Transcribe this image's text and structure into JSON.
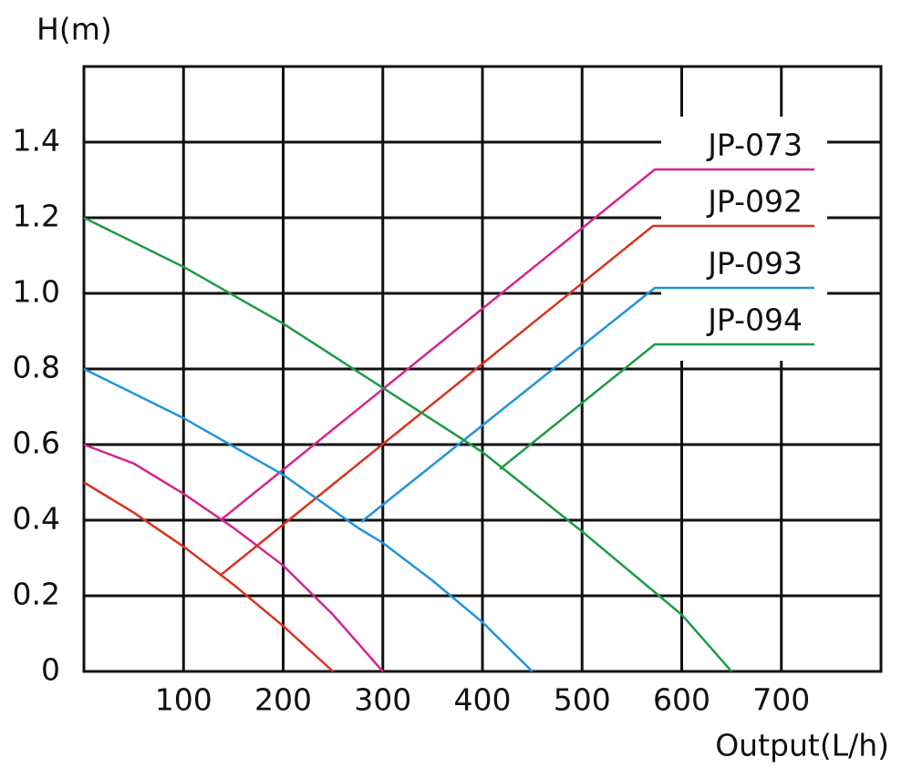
{
  "chart_data": {
    "type": "line",
    "y_label": "H(m)",
    "x_label": "Output(L/h)",
    "xlim": [
      0,
      800
    ],
    "ylim": [
      0,
      1.6
    ],
    "xticks": [
      100,
      200,
      300,
      400,
      500,
      600,
      700
    ],
    "yticks": [
      0,
      0.2,
      0.4,
      0.6,
      0.8,
      {
        "value": 1,
        "label": "1.0"
      },
      1.2,
      1.4
    ],
    "grid": true,
    "series": [
      {
        "name": "JP-073",
        "color": "#d6248f",
        "x": [
          0,
          50,
          100,
          150,
          200,
          250,
          300
        ],
        "values": [
          0.6,
          0.55,
          0.47,
          0.38,
          0.28,
          0.15,
          0
        ]
      },
      {
        "name": "JP-092",
        "color": "#d9331f",
        "x": [
          0,
          50,
          100,
          150,
          200,
          250
        ],
        "values": [
          0.5,
          0.42,
          0.33,
          0.23,
          0.12,
          0
        ]
      },
      {
        "name": "JP-093",
        "color": "#1f95dc",
        "x": [
          0,
          100,
          200,
          275,
          300,
          350,
          400,
          450
        ],
        "values": [
          0.8,
          0.67,
          0.52,
          0.38,
          0.34,
          0.24,
          0.13,
          0
        ]
      },
      {
        "name": "JP-094",
        "color": "#1e9a45",
        "x": [
          0,
          100,
          200,
          300,
          400,
          500,
          600,
          650
        ],
        "values": [
          1.2,
          1.07,
          0.92,
          0.75,
          0.58,
          0.37,
          0.15,
          0
        ]
      }
    ]
  }
}
